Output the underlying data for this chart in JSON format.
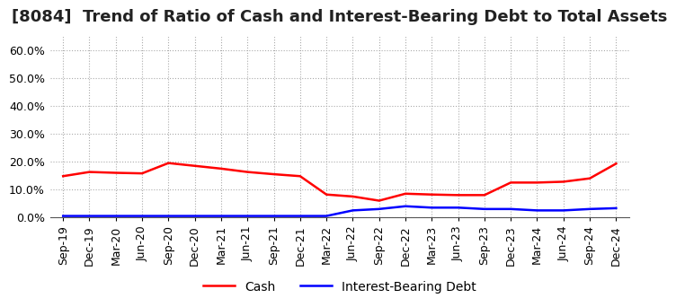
{
  "title": "[8084]  Trend of Ratio of Cash and Interest-Bearing Debt to Total Assets",
  "x_labels": [
    "Sep-19",
    "Dec-19",
    "Mar-20",
    "Jun-20",
    "Sep-20",
    "Dec-20",
    "Mar-21",
    "Jun-21",
    "Sep-21",
    "Dec-21",
    "Mar-22",
    "Jun-22",
    "Sep-22",
    "Dec-22",
    "Mar-23",
    "Jun-23",
    "Sep-23",
    "Dec-23",
    "Mar-24",
    "Jun-24",
    "Sep-24",
    "Dec-24"
  ],
  "cash": [
    0.148,
    0.163,
    0.16,
    0.158,
    0.195,
    0.185,
    0.175,
    0.163,
    0.155,
    0.148,
    0.082,
    0.075,
    0.06,
    0.085,
    0.082,
    0.08,
    0.08,
    0.125,
    0.125,
    0.128,
    0.14,
    0.193
  ],
  "debt": [
    0.005,
    0.005,
    0.005,
    0.005,
    0.005,
    0.005,
    0.005,
    0.005,
    0.005,
    0.005,
    0.005,
    0.025,
    0.03,
    0.04,
    0.035,
    0.035,
    0.03,
    0.03,
    0.025,
    0.025,
    0.03,
    0.033
  ],
  "cash_color": "#ff0000",
  "debt_color": "#0000ff",
  "ylim": [
    0.0,
    0.65
  ],
  "yticks": [
    0.0,
    0.1,
    0.2,
    0.3,
    0.4,
    0.5,
    0.6
  ],
  "background_color": "#ffffff",
  "grid_color": "#aaaaaa",
  "legend_cash": "Cash",
  "legend_debt": "Interest-Bearing Debt",
  "title_fontsize": 13,
  "axis_fontsize": 9,
  "legend_fontsize": 10
}
